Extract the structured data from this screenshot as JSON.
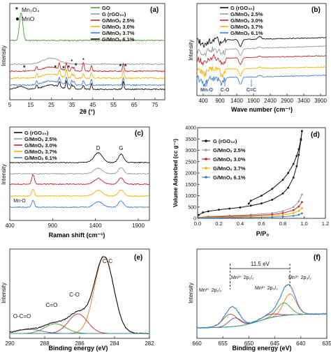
{
  "colors": {
    "black": "#111111",
    "green": "#4e9a2e",
    "gray": "#9a9a9a",
    "red": "#c0282d",
    "yellow": "#f0b400",
    "blue": "#3f7fc8",
    "orange": "#f07c22",
    "teal": "#2aa0a0",
    "purple": "#6a4aa6",
    "brown": "#b5552a"
  },
  "chart_data": [
    {
      "id": "a",
      "type": "line",
      "panel_label": "(a)",
      "xlabel": "2θ (°)",
      "ylabel": "Intensity",
      "xlim": [
        5,
        80
      ],
      "xticks": [
        "5",
        "15",
        "25",
        "35",
        "45",
        "55",
        "65",
        "75"
      ],
      "series": [
        {
          "name": "GO",
          "color": "green"
        },
        {
          "name": "G (rGO₃₀)",
          "color": "gray"
        },
        {
          "name": "G/MnOₓ 2.5%",
          "color": "red"
        },
        {
          "name": "G/MnOₓ 3.0%",
          "color": "yellow"
        },
        {
          "name": "G/MnOₓ 3.7%",
          "color": "blue"
        },
        {
          "name": "G/MnOₓ 6.1%",
          "color": "black"
        }
      ],
      "phase_legend": [
        {
          "marker": "*",
          "text": "Mn₃O₄"
        },
        {
          "marker": "●",
          "text": "MnO"
        }
      ]
    },
    {
      "id": "b",
      "type": "line",
      "panel_label": "(b)",
      "xlabel": "Wave number (cm⁻¹)",
      "ylabel": "Intensity",
      "xlim": [
        400,
        3900
      ],
      "xticks": [
        "400",
        "900",
        "1400",
        "1900",
        "2400",
        "2900",
        "3400",
        "3900"
      ],
      "series": [
        {
          "name": "G (rGO₃₀)",
          "color": "black"
        },
        {
          "name": "G/MnOₓ 2.5%",
          "color": "gray"
        },
        {
          "name": "G/MnOₓ 3.0%",
          "color": "red"
        },
        {
          "name": "G/MnOₓ 3.7%",
          "color": "yellow"
        },
        {
          "name": "G/MnOₓ 6.1%",
          "color": "blue"
        }
      ],
      "annotations": [
        "Mn-O",
        "C-O",
        "C=C"
      ]
    },
    {
      "id": "c",
      "type": "line",
      "panel_label": "(c)",
      "xlabel": "Raman shift (cm⁻¹)",
      "ylabel": "Intensity",
      "xlim": [
        400,
        1900
      ],
      "xticks": [
        "400",
        "900",
        "1400",
        "1900"
      ],
      "series": [
        {
          "name": "G (rGO₃₀)",
          "color": "black"
        },
        {
          "name": "G/MnOₓ 2.5%",
          "color": "gray"
        },
        {
          "name": "G/MnOₓ 3.0%",
          "color": "red"
        },
        {
          "name": "G/MnOₓ 3.7%",
          "color": "yellow"
        },
        {
          "name": "G/MnOₓ 6.1%",
          "color": "blue"
        }
      ],
      "annotations": [
        "D",
        "G",
        "Mn-O"
      ]
    },
    {
      "id": "d",
      "type": "line",
      "panel_label": "(d)",
      "xlabel": "P/P₀",
      "ylabel": "Volume Adsorbed (cc g⁻¹)",
      "xlim": [
        0,
        1.2
      ],
      "ylim": [
        0,
        4000
      ],
      "xticks": [
        "0.0",
        "0.2",
        "0.4",
        "0.6",
        "0.8",
        "1.0",
        "1.2"
      ],
      "yticks": [
        "0",
        "500",
        "1000",
        "1500",
        "2000",
        "2500",
        "3000",
        "3500",
        "4000"
      ],
      "series": [
        {
          "name": "G (rGO₃₀)",
          "color": "black",
          "x": [
            0.01,
            0.05,
            0.1,
            0.2,
            0.3,
            0.4,
            0.5,
            0.6,
            0.7,
            0.8,
            0.85,
            0.9,
            0.93,
            0.95,
            0.97,
            0.98
          ],
          "y": [
            150,
            260,
            310,
            380,
            430,
            480,
            560,
            660,
            820,
            1100,
            1350,
            1800,
            2300,
            2800,
            3450,
            3850
          ],
          "desorption": {
            "x": [
              0.98,
              0.97,
              0.95,
              0.93,
              0.9,
              0.85,
              0.8,
              0.7,
              0.6,
              0.5,
              0.48
            ],
            "y": [
              3850,
              3500,
              3050,
              2750,
              2400,
              2000,
              1700,
              1300,
              1000,
              780,
              650
            ]
          }
        },
        {
          "name": "G/MnOₓ 2.5%",
          "color": "gray",
          "x": [
            0.01,
            0.1,
            0.3,
            0.5,
            0.7,
            0.8,
            0.9,
            0.95,
            0.98
          ],
          "y": [
            40,
            80,
            120,
            160,
            230,
            320,
            500,
            750,
            1050
          ]
        },
        {
          "name": "G/MnOₓ 3.0%",
          "color": "red",
          "x": [
            0.01,
            0.1,
            0.3,
            0.5,
            0.7,
            0.8,
            0.9,
            0.95,
            0.98
          ],
          "y": [
            30,
            60,
            90,
            120,
            170,
            230,
            360,
            520,
            720
          ]
        },
        {
          "name": "G/MnOₓ 3.7%",
          "color": "yellow",
          "x": [
            0.01,
            0.1,
            0.3,
            0.5,
            0.7,
            0.8,
            0.9,
            0.95,
            0.98
          ],
          "y": [
            20,
            40,
            60,
            80,
            110,
            150,
            230,
            330,
            450
          ]
        },
        {
          "name": "G/MnOₓ 6.1%",
          "color": "blue",
          "x": [
            0.01,
            0.1,
            0.3,
            0.5,
            0.7,
            0.8,
            0.9,
            0.95,
            0.98
          ],
          "y": [
            10,
            20,
            30,
            40,
            55,
            75,
            110,
            160,
            220
          ]
        }
      ]
    },
    {
      "id": "e",
      "type": "line",
      "panel_label": "(e)",
      "xlabel": "Binding energy (eV)",
      "ylabel": "Intensity",
      "xlim": [
        290,
        282
      ],
      "xticks": [
        "290",
        "288",
        "286",
        "284",
        "282"
      ],
      "peak_labels": [
        "C-C",
        "C-O",
        "C=O",
        "O-C=O"
      ]
    },
    {
      "id": "f",
      "type": "line",
      "panel_label": "(f)",
      "xlabel": "Binding energy (eV)",
      "ylabel": "Intensity",
      "xlim": [
        660,
        635
      ],
      "xticks": [
        "660",
        "655",
        "650",
        "645",
        "640",
        "635"
      ],
      "annotations": [
        "11.5 eV",
        "Mn²⁺ 2p₁/₂",
        "Mn³⁺ 2p₁/₂",
        "Mn²⁺ 2p₃/₂",
        "Mn³⁺ 2p₃/₂"
      ]
    }
  ]
}
